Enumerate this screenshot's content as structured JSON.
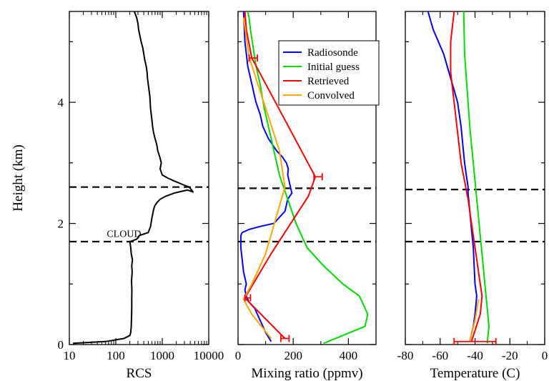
{
  "chart_data": [
    {
      "type": "line",
      "panel": "rcs",
      "xlabel": "RCS",
      "ylabel": "Height (km)",
      "xscale": "log",
      "xlim": [
        10,
        10000
      ],
      "ylim": [
        0,
        5.5
      ],
      "xticks": [
        10,
        100,
        1000,
        10000
      ],
      "xtick_labels": [
        "10",
        "100",
        "1000",
        "10000"
      ],
      "yticks": [
        0,
        2,
        4
      ],
      "ytick_labels": [
        "0",
        "2",
        "4"
      ],
      "dashed_lines": [
        2.6,
        1.7
      ],
      "annotation": {
        "text": "CLOUD",
        "x": 150,
        "y": 1.8
      },
      "series": [
        {
          "color": "#000000",
          "x": [
            12,
            60,
            150,
            200,
            210,
            215,
            218,
            220,
            220,
            222,
            218,
            225,
            220,
            228,
            215,
            210,
            200,
            240,
            280,
            300,
            320,
            500,
            560,
            600,
            620,
            640,
            660,
            700,
            780,
            900,
            1200,
            1800,
            2600,
            3500,
            4600,
            3800,
            2600,
            1800,
            1300,
            1000,
            900,
            950,
            880,
            800,
            760,
            700,
            650,
            620,
            600,
            580,
            560,
            550,
            540,
            520,
            500,
            480,
            470,
            450,
            420,
            400,
            380,
            350,
            330,
            310,
            300,
            280,
            250
          ],
          "y": [
            0.02,
            0.05,
            0.1,
            0.15,
            0.2,
            0.3,
            0.45,
            0.6,
            0.75,
            0.9,
            1.05,
            1.2,
            1.3,
            1.4,
            1.5,
            1.6,
            1.7,
            1.72,
            1.74,
            1.76,
            1.8,
            1.85,
            1.95,
            2.1,
            2.15,
            2.2,
            2.25,
            2.3,
            2.35,
            2.4,
            2.45,
            2.5,
            2.53,
            2.55,
            2.52,
            2.6,
            2.65,
            2.7,
            2.75,
            2.8,
            2.9,
            3.0,
            3.1,
            3.2,
            3.3,
            3.4,
            3.5,
            3.6,
            3.7,
            3.8,
            3.9,
            4.0,
            4.1,
            4.2,
            4.3,
            4.4,
            4.5,
            4.6,
            4.7,
            4.8,
            4.9,
            5.0,
            5.1,
            5.2,
            5.3,
            5.4,
            5.5
          ]
        }
      ]
    },
    {
      "type": "line",
      "panel": "mixing",
      "xlabel": "Mixing ratio (ppmv)",
      "xlim": [
        0,
        500
      ],
      "ylim": [
        0,
        5.5
      ],
      "xticks": [
        0,
        200,
        400
      ],
      "xtick_labels": [
        "0",
        "200",
        "400"
      ],
      "dashed_lines": [
        2.58,
        1.7
      ],
      "legend": {
        "placement": "top-right"
      },
      "series": [
        {
          "name": "Radiosonde",
          "color": "#0000ff",
          "x": [
            120,
            100,
            80,
            60,
            40,
            30,
            25,
            30,
            20,
            15,
            10,
            10,
            15,
            40,
            80,
            130,
            170,
            180,
            195,
            190,
            185,
            180,
            182,
            175,
            160,
            140,
            110,
            90,
            80,
            65,
            55,
            45,
            35,
            30,
            25,
            20
          ],
          "y": [
            0.05,
            0.2,
            0.4,
            0.6,
            0.7,
            0.8,
            0.9,
            1.0,
            1.2,
            1.4,
            1.6,
            1.8,
            1.85,
            1.9,
            1.95,
            2.0,
            2.2,
            2.4,
            2.5,
            2.6,
            2.7,
            2.8,
            2.9,
            3.0,
            3.1,
            3.2,
            3.4,
            3.6,
            3.8,
            4.0,
            4.2,
            4.4,
            4.6,
            4.8,
            5.0,
            5.5
          ]
        },
        {
          "name": "Initial guess",
          "color": "#00dd00",
          "x": [
            310,
            460,
            470,
            440,
            380,
            310,
            250,
            210,
            180,
            150,
            130,
            110,
            95,
            80,
            65,
            55,
            45,
            40,
            35
          ],
          "y": [
            0.02,
            0.3,
            0.5,
            0.8,
            1.0,
            1.3,
            1.6,
            2.0,
            2.4,
            2.8,
            3.2,
            3.6,
            3.9,
            4.3,
            4.6,
            4.9,
            5.2,
            5.4,
            5.5
          ]
        },
        {
          "name": "Retrieved",
          "color": "#ff0000",
          "x": [
            170,
            25,
            120,
            255,
            280,
            50,
            30,
            25
          ],
          "y": [
            0.1,
            0.77,
            1.5,
            2.45,
            2.77,
            4.73,
            5.2,
            5.5
          ]
        },
        {
          "name": "Convolved",
          "color": "#ffa500",
          "x": [
            120,
            50,
            20,
            50,
            100,
            170,
            150,
            40,
            20
          ],
          "y": [
            0.1,
            0.5,
            0.75,
            1.0,
            1.5,
            2.6,
            3.2,
            4.75,
            5.4
          ]
        }
      ],
      "error_bars": [
        {
          "x": 290,
          "y": 2.77,
          "xerr": 15
        },
        {
          "x": 55,
          "y": 4.73,
          "xerr": 15
        },
        {
          "x": 35,
          "y": 0.77,
          "xerr": 10
        },
        {
          "x": 170,
          "y": 0.1,
          "xerr": 15
        }
      ]
    },
    {
      "type": "line",
      "panel": "temperature",
      "xlabel": "Temperature (C)",
      "xlim": [
        -80,
        0
      ],
      "ylim": [
        0,
        5.5
      ],
      "xticks": [
        -80,
        -60,
        -40,
        -20,
        0
      ],
      "xtick_labels": [
        "-80",
        "-60",
        "-40",
        "-20",
        "0"
      ],
      "dashed_lines": [
        2.56,
        1.7
      ],
      "series": [
        {
          "name": "Radiosonde",
          "color": "#0000ff",
          "x": [
            -43,
            -41,
            -40,
            -39,
            -40,
            -40.5,
            -41,
            -42,
            -43,
            -44,
            -44,
            -45,
            -46,
            -47,
            -48,
            -50,
            -52,
            -55,
            -58,
            -61,
            -64,
            -67
          ],
          "y": [
            0.05,
            0.3,
            0.5,
            0.8,
            1.0,
            1.3,
            1.6,
            1.9,
            2.2,
            2.5,
            2.6,
            2.8,
            3.0,
            3.3,
            3.6,
            4.0,
            4.2,
            4.5,
            4.8,
            5.0,
            5.2,
            5.5
          ]
        },
        {
          "name": "Initial guess",
          "color": "#00dd00",
          "x": [
            -33,
            -32,
            -33,
            -34,
            -35,
            -36,
            -37,
            -38,
            -39,
            -40,
            -41,
            -42,
            -43,
            -44,
            -45,
            -46,
            -46.5
          ],
          "y": [
            0.02,
            0.3,
            0.6,
            0.9,
            1.2,
            1.5,
            1.8,
            2.1,
            2.4,
            2.7,
            3.0,
            3.3,
            3.6,
            4.0,
            4.4,
            4.8,
            5.5
          ]
        },
        {
          "name": "Retrieved",
          "color": "#ff0000",
          "x": [
            -42,
            -37,
            -36,
            -38,
            -40,
            -42,
            -44,
            -48,
            -52,
            -54,
            -54,
            -52
          ],
          "y": [
            0.05,
            0.5,
            0.8,
            1.2,
            1.6,
            2.0,
            2.4,
            3.0,
            4.0,
            4.5,
            5.0,
            5.5
          ]
        },
        {
          "name": "Convolved",
          "color": "#ffa500",
          "x": [
            -43,
            -40,
            -38
          ],
          "y": [
            0.05,
            0.4,
            0.75
          ]
        }
      ],
      "error_bars": [
        {
          "x": -40,
          "y": 0.05,
          "xerr": 12
        }
      ]
    }
  ],
  "legend_entries": [
    "Radiosonde",
    "Initial guess",
    "Retrieved",
    "Convolved"
  ]
}
